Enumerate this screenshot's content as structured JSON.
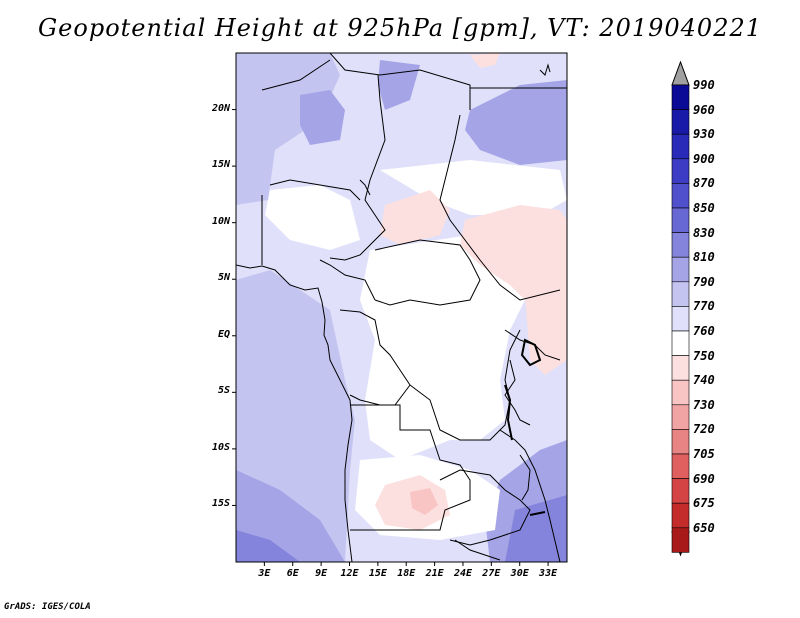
{
  "title": "Geopotential Height at 925hPa [gpm], VT: 2019040221",
  "footer": "GrADS: IGES/COLA",
  "map": {
    "lat_labels": [
      "20N",
      "15N",
      "10N",
      "5N",
      "EQ",
      "5S",
      "10S",
      "15S"
    ],
    "lon_labels": [
      "3E",
      "6E",
      "9E",
      "12E",
      "15E",
      "18E",
      "21E",
      "24E",
      "27E",
      "30E",
      "33E"
    ],
    "lat_values": [
      20,
      15,
      10,
      5,
      0,
      -5,
      -10,
      -15
    ],
    "lon_values": [
      3,
      6,
      9,
      12,
      15,
      18,
      21,
      24,
      27,
      30,
      33
    ],
    "lon_range": [
      0,
      35
    ],
    "lat_range": [
      -20,
      25
    ],
    "regions": [
      {
        "name": "sahara-northwest-high",
        "level": "790"
      },
      {
        "name": "libya-high-patch",
        "level": "810"
      },
      {
        "name": "egypt-sudan-high",
        "level": "810"
      },
      {
        "name": "sahel-central-low",
        "level": "750"
      },
      {
        "name": "east-africa-low",
        "level": "750"
      },
      {
        "name": "congo-basin",
        "level": "760"
      },
      {
        "name": "atlantic-ocean",
        "level": "790"
      },
      {
        "name": "south-atlantic-high",
        "level": "810"
      },
      {
        "name": "mozambique-high",
        "level": "830"
      },
      {
        "name": "zambia-low",
        "level": "750"
      }
    ]
  },
  "colorbar": {
    "levels": [
      "990",
      "960",
      "930",
      "900",
      "870",
      "850",
      "830",
      "810",
      "790",
      "770",
      "760",
      "750",
      "740",
      "730",
      "720",
      "705",
      "690",
      "675",
      "650"
    ],
    "colors": [
      "#0a0a96",
      "#1a1aa8",
      "#2a2ab8",
      "#3c3cc4",
      "#5050cc",
      "#6868d4",
      "#8484dc",
      "#a4a4e6",
      "#c4c4f0",
      "#e0e0fa",
      "#ffffff",
      "#fce0e0",
      "#f8c4c4",
      "#f0a4a4",
      "#e88484",
      "#e06060",
      "#d44444",
      "#c42c2c",
      "#a81a1a"
    ],
    "top_cap_color": "#a0a0a0",
    "bottom_cap_color": "#a81a1a"
  }
}
